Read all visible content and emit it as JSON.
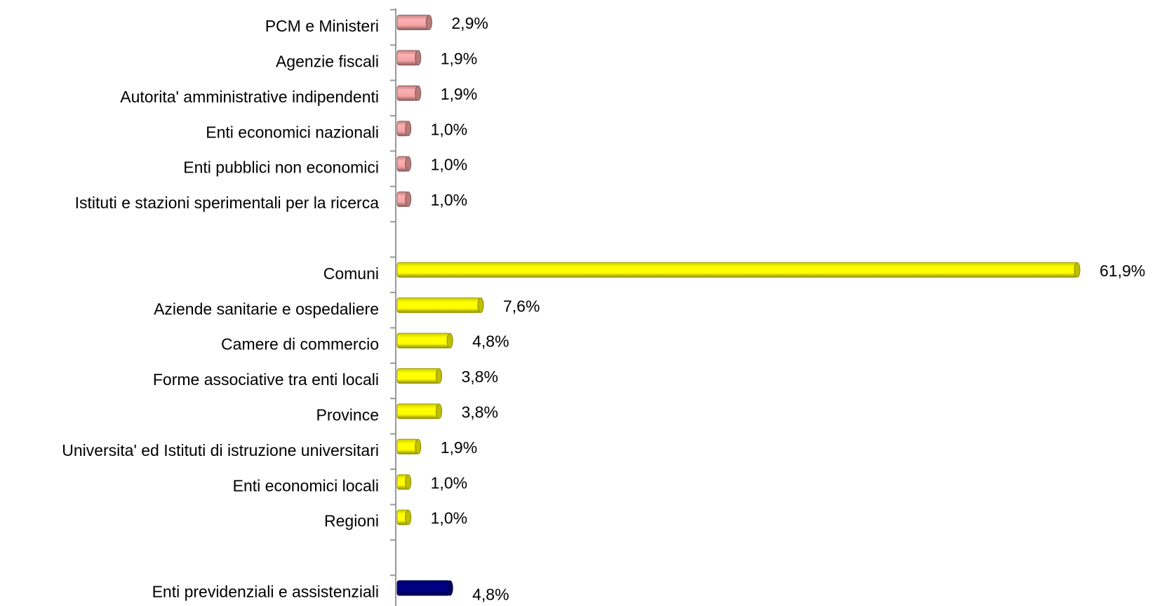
{
  "chart_data": {
    "type": "bar",
    "orientation": "horizontal",
    "categories": [
      "PCM e Ministeri",
      "Agenzie fiscali",
      "Autorita' amministrative indipendenti",
      "Enti economici nazionali",
      "Enti pubblici non economici",
      "Istituti e stazioni sperimentali per la ricerca",
      null,
      "Comuni",
      "Aziende sanitarie e ospedaliere",
      "Camere di commercio",
      "Forme associative tra enti locali",
      "Province",
      "Universita' ed Istituti di istruzione universitari",
      "Enti economici locali",
      "Regioni",
      null,
      "Enti previdenziali e assistenziali"
    ],
    "values": [
      2.9,
      1.9,
      1.9,
      1.0,
      1.0,
      1.0,
      null,
      61.9,
      7.6,
      4.8,
      3.8,
      3.8,
      1.9,
      1.0,
      1.0,
      null,
      4.8
    ],
    "value_labels": [
      "2,9%",
      "1,9%",
      "1,9%",
      "1,0%",
      "1,0%",
      "1,0%",
      null,
      "61,9%",
      "7,6%",
      "4,8%",
      "3,8%",
      "3,8%",
      "1,9%",
      "1,0%",
      "1,0%",
      null,
      "4,8%"
    ],
    "colors": [
      "#f4a3a3",
      "#f4a3a3",
      "#f4a3a3",
      "#f4a3a3",
      "#f4a3a3",
      "#f4a3a3",
      null,
      "#ffff00",
      "#ffff00",
      "#ffff00",
      "#ffff00",
      "#ffff00",
      "#ffff00",
      "#ffff00",
      "#ffff00",
      null,
      "#000080"
    ]
  }
}
